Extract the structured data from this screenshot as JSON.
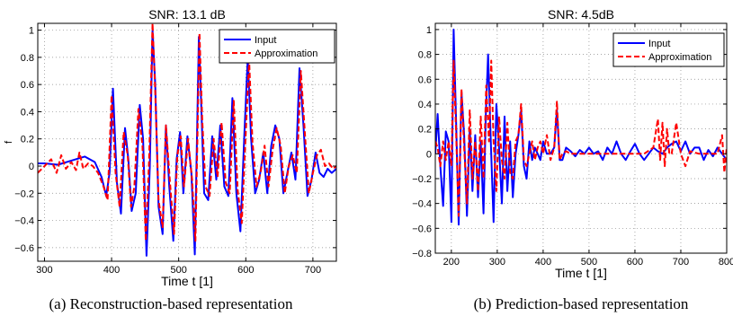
{
  "chart_data": [
    {
      "type": "line",
      "title": "SNR: 13.1 dB",
      "xlabel": "Time t [1]",
      "ylabel": "f",
      "xlim": [
        290,
        735
      ],
      "ylim": [
        -0.7,
        1.05
      ],
      "xticks": [
        300,
        400,
        500,
        600,
        700
      ],
      "yticks": [
        -0.6,
        -0.4,
        -0.2,
        0,
        0.2,
        0.4,
        0.6,
        0.8,
        1
      ],
      "xtick_labels": [
        "300",
        "400",
        "500",
        "600",
        "700"
      ],
      "ytick_labels": [
        "−0.6",
        "−0.4",
        "−0.2",
        "0",
        "0.2",
        "0.4",
        "0.6",
        "0.8",
        "1"
      ],
      "grid": true,
      "legend_position": "top-right",
      "caption": "(a) Reconstruction-based representation",
      "series": [
        {
          "name": "Input",
          "color": "#0000ff",
          "style": "solid",
          "x": [
            290,
            300,
            320,
            340,
            360,
            375,
            385,
            392,
            397,
            402,
            408,
            414,
            420,
            425,
            430,
            436,
            442,
            447,
            452,
            457,
            461,
            465,
            470,
            476,
            481,
            486,
            492,
            497,
            502,
            507,
            513,
            519,
            524,
            530,
            534,
            538,
            544,
            550,
            556,
            562,
            568,
            574,
            580,
            586,
            592,
            598,
            603,
            608,
            614,
            620,
            626,
            632,
            638,
            644,
            650,
            656,
            662,
            668,
            674,
            680,
            686,
            692,
            698,
            704,
            710,
            716,
            722,
            728,
            735
          ],
          "y": [
            0.02,
            0.02,
            0.01,
            0.04,
            0.07,
            0.03,
            -0.08,
            -0.22,
            -0.05,
            0.57,
            -0.12,
            -0.35,
            0.28,
            0.05,
            -0.33,
            -0.2,
            0.45,
            0.2,
            -0.66,
            0.0,
            1.0,
            0.6,
            -0.3,
            -0.5,
            0.3,
            -0.15,
            -0.55,
            0.05,
            0.25,
            -0.2,
            0.22,
            -0.05,
            -0.65,
            0.95,
            0.4,
            -0.2,
            -0.25,
            0.22,
            -0.1,
            0.3,
            -0.15,
            -0.22,
            0.5,
            -0.2,
            -0.48,
            0.25,
            0.8,
            0.2,
            -0.2,
            -0.1,
            0.1,
            -0.2,
            0.15,
            0.3,
            0.2,
            -0.2,
            -0.05,
            0.1,
            -0.1,
            0.72,
            0.3,
            -0.22,
            -0.1,
            0.1,
            -0.05,
            -0.08,
            -0.02,
            -0.05,
            -0.02
          ]
        },
        {
          "name": "Approximation",
          "color": "#ff0000",
          "style": "dashed",
          "x": [
            290,
            300,
            310,
            318,
            325,
            332,
            340,
            347,
            352,
            358,
            365,
            372,
            380,
            388,
            394,
            400,
            406,
            412,
            418,
            424,
            429,
            434,
            440,
            446,
            451,
            456,
            461,
            465,
            470,
            476,
            481,
            487,
            493,
            498,
            503,
            508,
            514,
            520,
            525,
            531,
            535,
            540,
            546,
            552,
            558,
            564,
            570,
            576,
            582,
            588,
            594,
            600,
            605,
            610,
            616,
            622,
            628,
            634,
            640,
            646,
            652,
            658,
            664,
            670,
            676,
            682,
            688,
            694,
            700,
            706,
            712,
            718,
            724,
            730,
            735
          ],
          "y": [
            -0.05,
            0.0,
            0.05,
            -0.05,
            0.08,
            -0.02,
            0.03,
            -0.03,
            0.1,
            -0.02,
            0.02,
            0.0,
            -0.05,
            -0.15,
            -0.25,
            0.52,
            -0.05,
            -0.3,
            0.25,
            0.08,
            -0.3,
            -0.15,
            0.42,
            0.15,
            -0.55,
            0.05,
            1.05,
            0.55,
            -0.25,
            -0.45,
            0.3,
            -0.12,
            -0.5,
            0.08,
            0.22,
            -0.15,
            0.2,
            -0.1,
            -0.55,
            0.98,
            0.35,
            -0.15,
            -0.22,
            0.2,
            -0.08,
            0.32,
            -0.12,
            -0.2,
            0.48,
            -0.18,
            -0.42,
            0.25,
            0.78,
            0.18,
            -0.15,
            -0.05,
            0.15,
            -0.15,
            0.12,
            0.28,
            0.15,
            -0.2,
            0.0,
            0.08,
            -0.05,
            0.7,
            0.25,
            -0.2,
            -0.05,
            0.08,
            0.12,
            0.0,
            0.02,
            -0.02,
            0.0
          ]
        }
      ]
    },
    {
      "type": "line",
      "title": "SNR: 4.5dB",
      "xlabel": "Time t [1]",
      "ylabel": "",
      "xlim": [
        165,
        800
      ],
      "ylim": [
        -0.8,
        1.05
      ],
      "xticks": [
        200,
        300,
        400,
        500,
        600,
        700,
        800
      ],
      "yticks": [
        -0.8,
        -0.6,
        -0.4,
        -0.2,
        0,
        0.2,
        0.4,
        0.6,
        0.8,
        1
      ],
      "xtick_labels": [
        "200",
        "300",
        "400",
        "500",
        "600",
        "700",
        "800"
      ],
      "ytick_labels": [
        "−0.8",
        "−0.6",
        "−0.4",
        "−0.2",
        "0",
        "0.2",
        "0.4",
        "0.6",
        "0.8",
        "1"
      ],
      "grid": true,
      "legend_position": "top-right",
      "caption": "(b) Prediction-based representation",
      "series": [
        {
          "name": "Input",
          "color": "#0000ff",
          "style": "solid",
          "x": [
            165,
            170,
            176,
            182,
            188,
            194,
            200,
            205,
            210,
            216,
            222,
            228,
            234,
            240,
            246,
            252,
            258,
            264,
            270,
            275,
            280,
            286,
            292,
            298,
            304,
            310,
            316,
            322,
            328,
            334,
            340,
            346,
            352,
            358,
            364,
            370,
            376,
            382,
            388,
            394,
            400,
            408,
            416,
            424,
            430,
            436,
            442,
            450,
            460,
            470,
            480,
            490,
            500,
            510,
            520,
            530,
            540,
            550,
            560,
            570,
            580,
            590,
            600,
            610,
            620,
            630,
            640,
            650,
            660,
            670,
            680,
            690,
            700,
            710,
            720,
            730,
            740,
            750,
            760,
            770,
            780,
            790,
            800
          ],
          "y": [
            0.0,
            0.32,
            -0.1,
            -0.42,
            0.18,
            0.1,
            -0.55,
            1.0,
            0.3,
            -0.57,
            0.5,
            0.15,
            -0.5,
            0.2,
            -0.3,
            0.15,
            -0.35,
            0.1,
            -0.48,
            0.3,
            0.8,
            0.1,
            -0.55,
            0.4,
            0.05,
            -0.4,
            0.3,
            -0.3,
            0.1,
            -0.35,
            0.0,
            0.15,
            0.35,
            -0.1,
            -0.2,
            0.1,
            -0.05,
            0.05,
            0.0,
            -0.05,
            0.1,
            0.0,
            0.0,
            0.05,
            0.35,
            -0.05,
            -0.05,
            0.05,
            0.02,
            -0.02,
            0.03,
            0.0,
            0.05,
            0.0,
            0.02,
            -0.05,
            0.05,
            0.0,
            0.1,
            0.0,
            -0.05,
            0.02,
            0.08,
            0.0,
            -0.05,
            0.0,
            0.05,
            0.02,
            0.0,
            0.05,
            0.08,
            0.1,
            0.02,
            0.1,
            0.0,
            0.05,
            0.05,
            -0.05,
            0.03,
            -0.02,
            0.05,
            0.0,
            -0.05
          ]
        },
        {
          "name": "Approximation",
          "color": "#ff0000",
          "style": "dashed",
          "x": [
            165,
            170,
            176,
            182,
            188,
            194,
            200,
            205,
            210,
            216,
            222,
            228,
            234,
            240,
            246,
            252,
            258,
            264,
            270,
            276,
            282,
            287,
            292,
            298,
            304,
            310,
            316,
            322,
            328,
            334,
            340,
            346,
            352,
            358,
            364,
            370,
            376,
            382,
            388,
            394,
            400,
            408,
            416,
            424,
            430,
            436,
            442,
            450,
            460,
            470,
            480,
            490,
            500,
            520,
            540,
            560,
            580,
            600,
            620,
            640,
            650,
            655,
            660,
            665,
            670,
            675,
            680,
            690,
            700,
            710,
            720,
            740,
            760,
            780,
            790,
            795,
            800
          ],
          "y": [
            0.1,
            0.05,
            -0.1,
            0.1,
            -0.05,
            0.1,
            -0.1,
            0.75,
            0.2,
            -0.5,
            0.52,
            0.05,
            -0.4,
            0.35,
            -0.2,
            0.1,
            -0.3,
            0.3,
            -0.2,
            0.55,
            0.1,
            0.75,
            0.1,
            -0.3,
            0.3,
            -0.05,
            -0.2,
            0.25,
            -0.15,
            -0.2,
            0.1,
            0.15,
            0.4,
            -0.05,
            -0.1,
            0.0,
            0.1,
            -0.05,
            0.05,
            0.1,
            0.0,
            0.15,
            -0.05,
            0.05,
            0.42,
            -0.05,
            0.0,
            0.02,
            0.0,
            0.0,
            0.0,
            0.0,
            0.0,
            0.0,
            0.0,
            0.0,
            0.0,
            0.0,
            0.0,
            0.05,
            0.28,
            -0.05,
            0.25,
            -0.1,
            0.2,
            0.0,
            0.0,
            0.25,
            0.0,
            -0.1,
            0.02,
            0.0,
            0.0,
            0.0,
            0.15,
            -0.15,
            0.05
          ]
        }
      ]
    }
  ]
}
